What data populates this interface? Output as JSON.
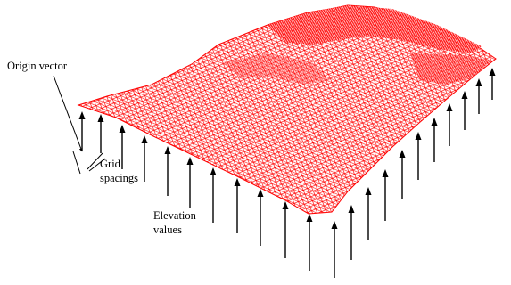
{
  "labels": {
    "origin_vector": "Origin vector",
    "grid_spacings_line1": "Grid",
    "grid_spacings_line2": "spacings",
    "elevation_values_line1": "Elevation",
    "elevation_values_line2": "values"
  },
  "colors": {
    "surface_mesh": "#ff0000",
    "arrows": "#000000",
    "background": "#ffffff"
  }
}
